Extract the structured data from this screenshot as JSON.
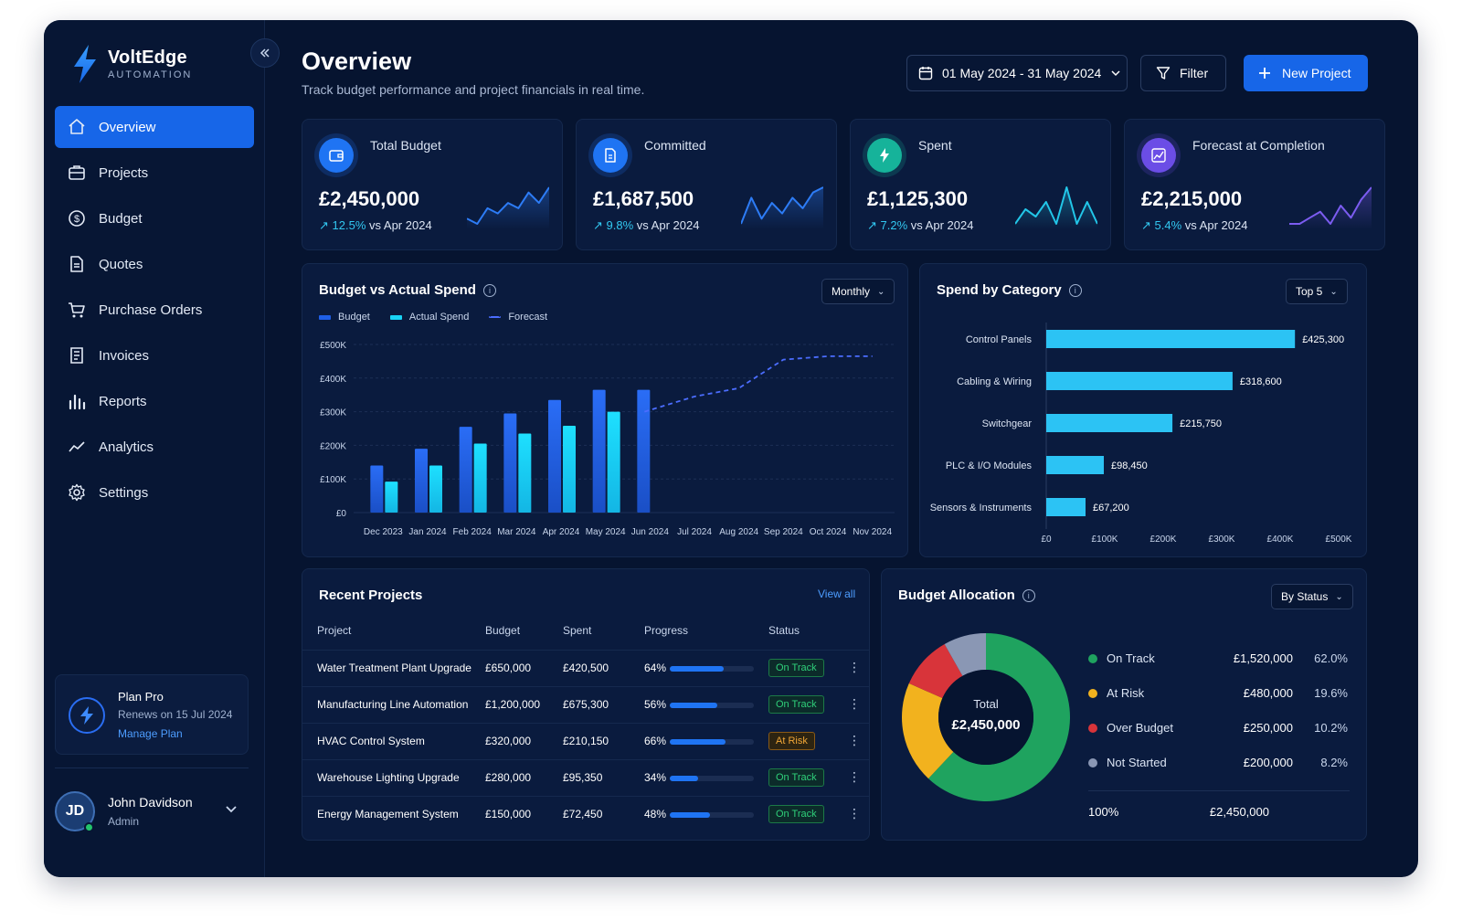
{
  "brand": {
    "name": "VoltEdge",
    "sub": "AUTOMATION"
  },
  "nav": [
    {
      "label": "Overview",
      "icon": "home-icon",
      "active": true
    },
    {
      "label": "Projects",
      "icon": "briefcase-icon"
    },
    {
      "label": "Budget",
      "icon": "dollar-icon"
    },
    {
      "label": "Quotes",
      "icon": "document-icon"
    },
    {
      "label": "Purchase Orders",
      "icon": "cart-icon"
    },
    {
      "label": "Invoices",
      "icon": "invoice-icon"
    },
    {
      "label": "Reports",
      "icon": "bar-chart-icon"
    },
    {
      "label": "Analytics",
      "icon": "trend-icon"
    },
    {
      "label": "Settings",
      "icon": "gear-icon"
    }
  ],
  "plan": {
    "title": "Plan Pro",
    "renew": "Renews on 15 Jul 2024",
    "link": "Manage Plan"
  },
  "user": {
    "initials": "JD",
    "name": "John Davidson",
    "role": "Admin"
  },
  "header": {
    "title": "Overview",
    "subtitle": "Track budget performance and project financials in real time.",
    "date_range": "01 May 2024 - 31 May 2024",
    "filter_label": "Filter",
    "new_label": "New Project"
  },
  "kpis": [
    {
      "label": "Total Budget",
      "value": "£2,450,000",
      "pct": "12.5%",
      "vs": "vs Apr 2024",
      "icon": "wallet-icon",
      "color": "#1f74f3",
      "spark": [
        3,
        2,
        5,
        4,
        6,
        5,
        8,
        6,
        9
      ],
      "spark_color": "#2d7cf6"
    },
    {
      "label": "Committed",
      "value": "£1,687,500",
      "pct": "9.8%",
      "vs": "vs Apr 2024",
      "icon": "document-icon",
      "color": "#1f74f3",
      "spark": [
        2,
        7,
        3,
        6,
        4,
        7,
        5,
        8,
        9
      ],
      "spark_color": "#2d7cf6"
    },
    {
      "label": "Spent",
      "value": "£1,125,300",
      "pct": "7.2%",
      "vs": "vs Apr 2024",
      "icon": "bolt-icon",
      "color": "#16b39a",
      "spark": [
        3,
        5,
        4,
        6,
        3,
        8,
        3,
        6,
        3
      ],
      "spark_color": "#22c6e8"
    },
    {
      "label": "Forecast at Completion",
      "value": "£2,215,000",
      "pct": "5.4%",
      "vs": "vs Apr 2024",
      "icon": "trend-chart-icon",
      "color": "#6b4de6",
      "spark": [
        3,
        3,
        4,
        5,
        3,
        6,
        4,
        7,
        9
      ],
      "spark_color": "#7b5cf0"
    }
  ],
  "budget_chart": {
    "title": "Budget vs Actual Spend",
    "dropdown": "Monthly",
    "legend": [
      "Budget",
      "Actual Spend",
      "Forecast"
    ]
  },
  "category_chart": {
    "title": "Spend by Category",
    "dropdown": "Top 5",
    "value_labels": [
      "£425,300",
      "£318,600",
      "£215,750",
      "£98,450",
      "£67,200"
    ]
  },
  "chart_data": [
    {
      "type": "bar",
      "categories": [
        "Dec 2023",
        "Jan 2024",
        "Feb 2024",
        "Mar 2024",
        "Apr 2024",
        "May 2024",
        "Jun 2024",
        "Jul 2024",
        "Aug 2024",
        "Sep 2024",
        "Oct 2024",
        "Nov 2024"
      ],
      "series": [
        {
          "name": "Budget",
          "values": [
            140000,
            190000,
            255000,
            295000,
            335000,
            365000,
            365000,
            null,
            null,
            null,
            null,
            null
          ]
        },
        {
          "name": "Actual Spend",
          "values": [
            92000,
            140000,
            205000,
            235000,
            258000,
            300000,
            null,
            null,
            null,
            null,
            null,
            null
          ]
        },
        {
          "name": "Forecast",
          "values": [
            null,
            null,
            null,
            null,
            null,
            null,
            300000,
            345000,
            370000,
            455000,
            465000,
            465000
          ]
        }
      ],
      "yticks": [
        "£0",
        "£100K",
        "£200K",
        "£300K",
        "£400K",
        "£500K"
      ],
      "ylim": [
        0,
        500000
      ],
      "grid": true,
      "legend": "top-left"
    },
    {
      "type": "bar",
      "orientation": "horizontal",
      "categories": [
        "Control Panels",
        "Cabling & Wiring",
        "Switchgear",
        "PLC & I/O Modules",
        "Sensors & Instruments"
      ],
      "values": [
        425300,
        318600,
        215750,
        98450,
        67200
      ],
      "xticks": [
        "£0",
        "£100K",
        "£200K",
        "£300K",
        "£400K",
        "£500K"
      ],
      "xlim": [
        0,
        500000
      ]
    },
    {
      "type": "pie",
      "categories": [
        "On Track",
        "At Risk",
        "Over Budget",
        "Not Started"
      ],
      "values": [
        62.0,
        19.6,
        10.2,
        8.2
      ]
    }
  ],
  "projects": {
    "title": "Recent Projects",
    "view_all": "View all",
    "columns": [
      "Project",
      "Budget",
      "Spent",
      "Progress",
      "Status"
    ],
    "rows": [
      {
        "name": "Water Treatment Plant Upgrade",
        "budget": "£650,000",
        "spent": "£420,500",
        "progress": "64%",
        "progress_value": 0.64,
        "status": "On Track",
        "risk": false
      },
      {
        "name": "Manufacturing Line Automation",
        "budget": "£1,200,000",
        "spent": "£675,300",
        "progress": "56%",
        "progress_value": 0.56,
        "status": "On Track",
        "risk": false
      },
      {
        "name": "HVAC Control System",
        "budget": "£320,000",
        "spent": "£210,150",
        "progress": "66%",
        "progress_value": 0.66,
        "status": "At Risk",
        "risk": true
      },
      {
        "name": "Warehouse Lighting Upgrade",
        "budget": "£280,000",
        "spent": "£95,350",
        "progress": "34%",
        "progress_value": 0.34,
        "status": "On Track",
        "risk": false
      },
      {
        "name": "Energy Management System",
        "budget": "£150,000",
        "spent": "£72,450",
        "progress": "48%",
        "progress_value": 0.48,
        "status": "On Track",
        "risk": false
      }
    ]
  },
  "allocation": {
    "title": "Budget Allocation",
    "dropdown": "By Status",
    "center_label": "Total",
    "center_value": "£2,450,000",
    "rows": [
      {
        "name": "On Track",
        "amount": "£1,520,000",
        "pct": "62.0%",
        "color": "#1fa35f"
      },
      {
        "name": "At Risk",
        "amount": "£480,000",
        "pct": "19.6%",
        "color": "#f2b21e"
      },
      {
        "name": "Over Budget",
        "amount": "£250,000",
        "pct": "10.2%",
        "color": "#d8343a"
      },
      {
        "name": "Not Started",
        "amount": "£200,000",
        "pct": "8.2%",
        "color": "#8a97b4"
      }
    ],
    "total_pct": "100%",
    "total_amount": "£2,450,000"
  },
  "colors": {
    "accent": "#1766e8",
    "budget_bar": "#1f5fe6",
    "actual_bar": "#19d3f5",
    "category_bar": "#2cc3f4"
  }
}
